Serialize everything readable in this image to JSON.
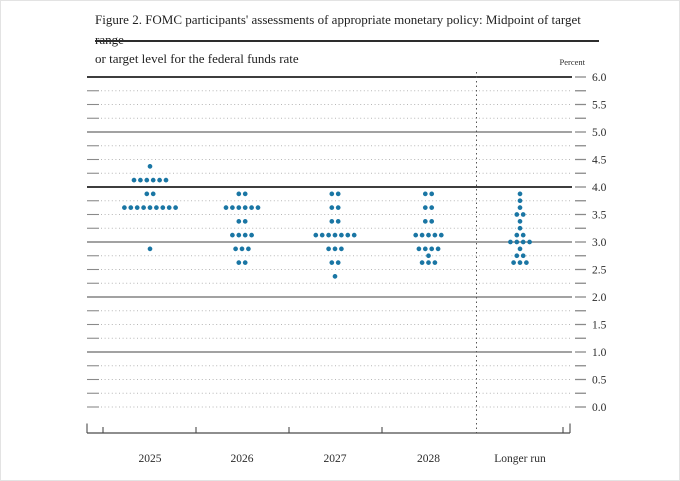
{
  "title": {
    "line1": "Figure 2. FOMC participants' assessments of appropriate monetary policy: Midpoint of target range",
    "line2": "or target level for the federal funds rate"
  },
  "axis": {
    "percent_label": "Percent",
    "y_tick_labels": [
      "6.0",
      "5.5",
      "5.0",
      "4.5",
      "4.0",
      "3.5",
      "3.0",
      "2.5",
      "2.0",
      "1.5",
      "1.0",
      "0.5",
      "0.0"
    ]
  },
  "colors": {
    "dot": "#1a76a4",
    "grid_solid": "#6b6b6b",
    "grid_emphasis": "#3d3d3d",
    "grid_dotted": "#b7b7b7",
    "grid_dash_end": "#8a8a8a",
    "axis_line": "#4a4a4a",
    "text": "#2b2b2b"
  },
  "chart_data": {
    "type": "scatter",
    "subtype": "fomc-dot-plot",
    "title": "FOMC participants' assessments of appropriate monetary policy: Midpoint of target range or target level for the federal funds rate",
    "ylabel": "Percent",
    "ylim": [
      0.0,
      6.0
    ],
    "y_label_step": 0.5,
    "gridline_step": 0.25,
    "solid_gridlines": [
      1.0,
      2.0,
      3.0,
      4.0,
      5.0,
      6.0
    ],
    "emphasized_gridlines": [
      4.0,
      6.0
    ],
    "grid": true,
    "legend_position": "none",
    "categories": [
      "2025",
      "2026",
      "2027",
      "2028",
      "Longer run"
    ],
    "dots_per_column_total": 19,
    "series": [
      {
        "category": "2025",
        "dots": [
          {
            "rate": 4.375,
            "count": 1
          },
          {
            "rate": 4.125,
            "count": 6
          },
          {
            "rate": 3.875,
            "count": 2
          },
          {
            "rate": 3.625,
            "count": 9
          },
          {
            "rate": 2.875,
            "count": 1
          }
        ]
      },
      {
        "category": "2026",
        "dots": [
          {
            "rate": 3.875,
            "count": 2
          },
          {
            "rate": 3.625,
            "count": 6
          },
          {
            "rate": 3.375,
            "count": 2
          },
          {
            "rate": 3.125,
            "count": 4
          },
          {
            "rate": 2.875,
            "count": 3
          },
          {
            "rate": 2.625,
            "count": 2
          }
        ]
      },
      {
        "category": "2027",
        "dots": [
          {
            "rate": 3.875,
            "count": 2
          },
          {
            "rate": 3.625,
            "count": 2
          },
          {
            "rate": 3.375,
            "count": 2
          },
          {
            "rate": 3.125,
            "count": 7
          },
          {
            "rate": 2.875,
            "count": 3
          },
          {
            "rate": 2.625,
            "count": 2
          },
          {
            "rate": 2.375,
            "count": 1
          }
        ]
      },
      {
        "category": "2028",
        "dots": [
          {
            "rate": 3.875,
            "count": 2
          },
          {
            "rate": 3.625,
            "count": 2
          },
          {
            "rate": 3.375,
            "count": 2
          },
          {
            "rate": 3.125,
            "count": 5
          },
          {
            "rate": 2.875,
            "count": 4
          },
          {
            "rate": 2.75,
            "count": 1
          },
          {
            "rate": 2.625,
            "count": 3
          }
        ]
      },
      {
        "category": "Longer run",
        "dots": [
          {
            "rate": 3.875,
            "count": 1
          },
          {
            "rate": 3.75,
            "count": 1
          },
          {
            "rate": 3.625,
            "count": 1
          },
          {
            "rate": 3.5,
            "count": 2
          },
          {
            "rate": 3.375,
            "count": 1
          },
          {
            "rate": 3.25,
            "count": 1
          },
          {
            "rate": 3.125,
            "count": 2
          },
          {
            "rate": 3.0,
            "count": 4
          },
          {
            "rate": 2.875,
            "count": 1
          },
          {
            "rate": 2.75,
            "count": 2
          },
          {
            "rate": 2.625,
            "count": 3
          }
        ]
      }
    ]
  }
}
